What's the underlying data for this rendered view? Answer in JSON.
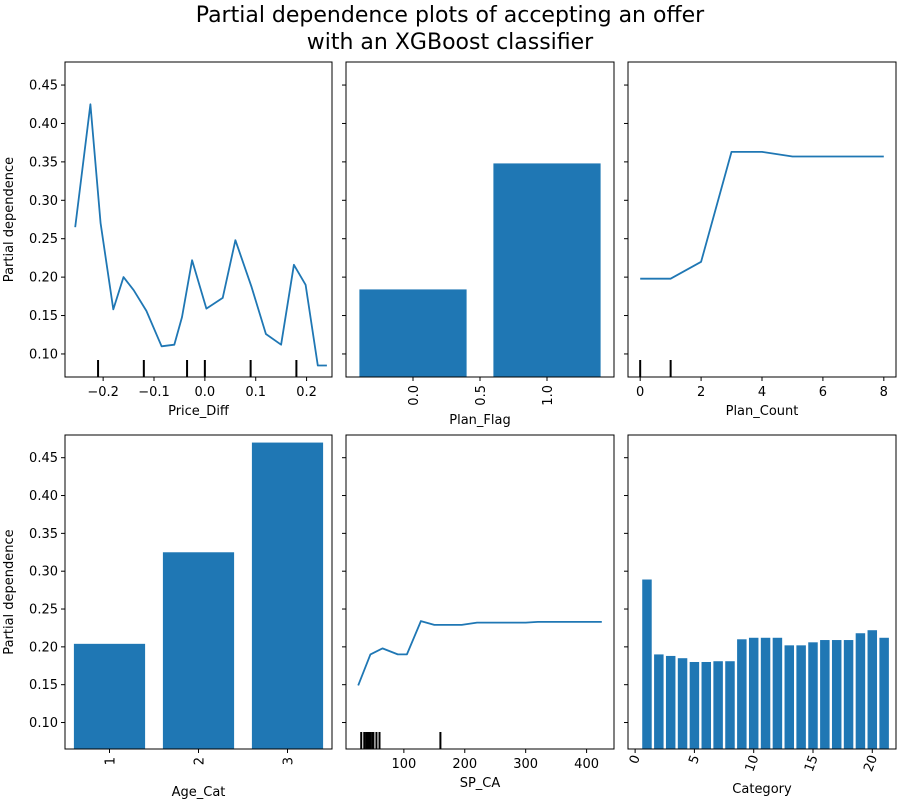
{
  "figure": {
    "title_line1": "Partial dependence plots of accepting an offer",
    "title_line2": "with an XGBoost classifier"
  },
  "colors": {
    "series": "#1f77b4",
    "rug": "#000000",
    "axis": "#000000"
  },
  "chart_data": [
    {
      "type": "line",
      "xlabel": "Price_Diff",
      "ylabel": "Partial dependence",
      "xlim": [
        -0.275,
        0.25
      ],
      "ylim": [
        0.07,
        0.48
      ],
      "xticks": [
        -0.2,
        -0.1,
        0.0,
        0.1,
        0.2
      ],
      "xtick_labels": [
        "−0.2",
        "−0.1",
        "0.0",
        "0.1",
        "0.2"
      ],
      "yticks": [
        0.1,
        0.15,
        0.2,
        0.25,
        0.3,
        0.35,
        0.4,
        0.45
      ],
      "ytick_labels": [
        "0.10",
        "0.15",
        "0.20",
        "0.25",
        "0.30",
        "0.35",
        "0.40",
        "0.45"
      ],
      "x": [
        -0.255,
        -0.225,
        -0.205,
        -0.18,
        -0.16,
        -0.14,
        -0.115,
        -0.085,
        -0.06,
        -0.045,
        -0.025,
        0.003,
        0.035,
        0.06,
        0.092,
        0.12,
        0.15,
        0.175,
        0.198,
        0.222,
        0.24
      ],
      "y": [
        0.265,
        0.425,
        0.27,
        0.158,
        0.2,
        0.183,
        0.156,
        0.11,
        0.112,
        0.148,
        0.222,
        0.159,
        0.173,
        0.248,
        0.187,
        0.126,
        0.112,
        0.216,
        0.19,
        0.085,
        0.085
      ],
      "rug": [
        -0.21,
        -0.12,
        -0.035,
        0.0,
        0.09,
        0.18
      ]
    },
    {
      "type": "bar",
      "xlabel": "Plan_Flag",
      "ylabel": "",
      "xlim": [
        -0.5,
        1.5
      ],
      "ylim": [
        0.07,
        0.48
      ],
      "categories": [
        "0.0",
        "1.0"
      ],
      "values": [
        0.184,
        0.348
      ],
      "xticks": [
        0.0,
        0.5,
        1.0
      ],
      "xtick_labels": [
        "0.0",
        "0.5",
        "1.0"
      ],
      "xtick_rotation": 90
    },
    {
      "type": "line",
      "xlabel": "Plan_Count",
      "ylabel": "",
      "xlim": [
        -0.4,
        8.4
      ],
      "ylim": [
        0.07,
        0.48
      ],
      "xticks": [
        0,
        2,
        4,
        6,
        8
      ],
      "xtick_labels": [
        "0",
        "2",
        "4",
        "6",
        "8"
      ],
      "x": [
        0,
        1,
        2,
        3,
        4,
        5,
        6,
        7,
        8
      ],
      "y": [
        0.198,
        0.198,
        0.22,
        0.363,
        0.363,
        0.357,
        0.357,
        0.357,
        0.357
      ],
      "rug": [
        0,
        1
      ]
    },
    {
      "type": "bar",
      "xlabel": "Age_Cat",
      "ylabel": "Partial dependence",
      "xlim": [
        -0.5,
        2.5
      ],
      "ylim": [
        0.065,
        0.48
      ],
      "categories": [
        "1",
        "2",
        "3"
      ],
      "values": [
        0.204,
        0.325,
        0.47
      ],
      "yticks": [
        0.1,
        0.15,
        0.2,
        0.25,
        0.3,
        0.35,
        0.4,
        0.45
      ],
      "ytick_labels": [
        "0.10",
        "0.15",
        "0.20",
        "0.25",
        "0.30",
        "0.35",
        "0.40",
        "0.45"
      ],
      "xtick_rotation": 90
    },
    {
      "type": "line",
      "xlabel": "SP_CA",
      "ylabel": "",
      "xlim": [
        5,
        445
      ],
      "ylim": [
        0.065,
        0.48
      ],
      "xticks": [
        100,
        200,
        300,
        400
      ],
      "xtick_labels": [
        "100",
        "200",
        "300",
        "400"
      ],
      "x": [
        25,
        45,
        65,
        90,
        105,
        128,
        150,
        170,
        195,
        220,
        260,
        300,
        320,
        360,
        400,
        425
      ],
      "y": [
        0.149,
        0.19,
        0.198,
        0.19,
        0.19,
        0.234,
        0.229,
        0.229,
        0.229,
        0.232,
        0.232,
        0.232,
        0.233,
        0.233,
        0.233,
        0.233
      ],
      "rug": [
        30,
        35,
        38,
        40,
        42,
        45,
        48,
        50,
        55,
        60,
        160
      ]
    },
    {
      "type": "bar",
      "xlabel": "Category",
      "ylabel": "",
      "xlim": [
        -0.6,
        22.0
      ],
      "ylim": [
        0.065,
        0.48
      ],
      "categories": [
        "1",
        "2",
        "3",
        "4",
        "5",
        "6",
        "7",
        "8",
        "9",
        "10",
        "11",
        "12",
        "13",
        "14",
        "15",
        "16",
        "17",
        "18",
        "19",
        "20",
        "21"
      ],
      "x": [
        1,
        2,
        3,
        4,
        5,
        6,
        7,
        8,
        9,
        10,
        11,
        12,
        13,
        14,
        15,
        16,
        17,
        18,
        19,
        20,
        21
      ],
      "values": [
        0.289,
        0.19,
        0.188,
        0.185,
        0.18,
        0.18,
        0.181,
        0.181,
        0.21,
        0.212,
        0.212,
        0.212,
        0.202,
        0.202,
        0.206,
        0.209,
        0.209,
        0.209,
        0.218,
        0.222,
        0.212
      ],
      "xticks": [
        0,
        5,
        10,
        15,
        20
      ],
      "xtick_labels": [
        "0",
        "5",
        "10",
        "15",
        "20"
      ],
      "xtick_rotation": 70
    }
  ]
}
